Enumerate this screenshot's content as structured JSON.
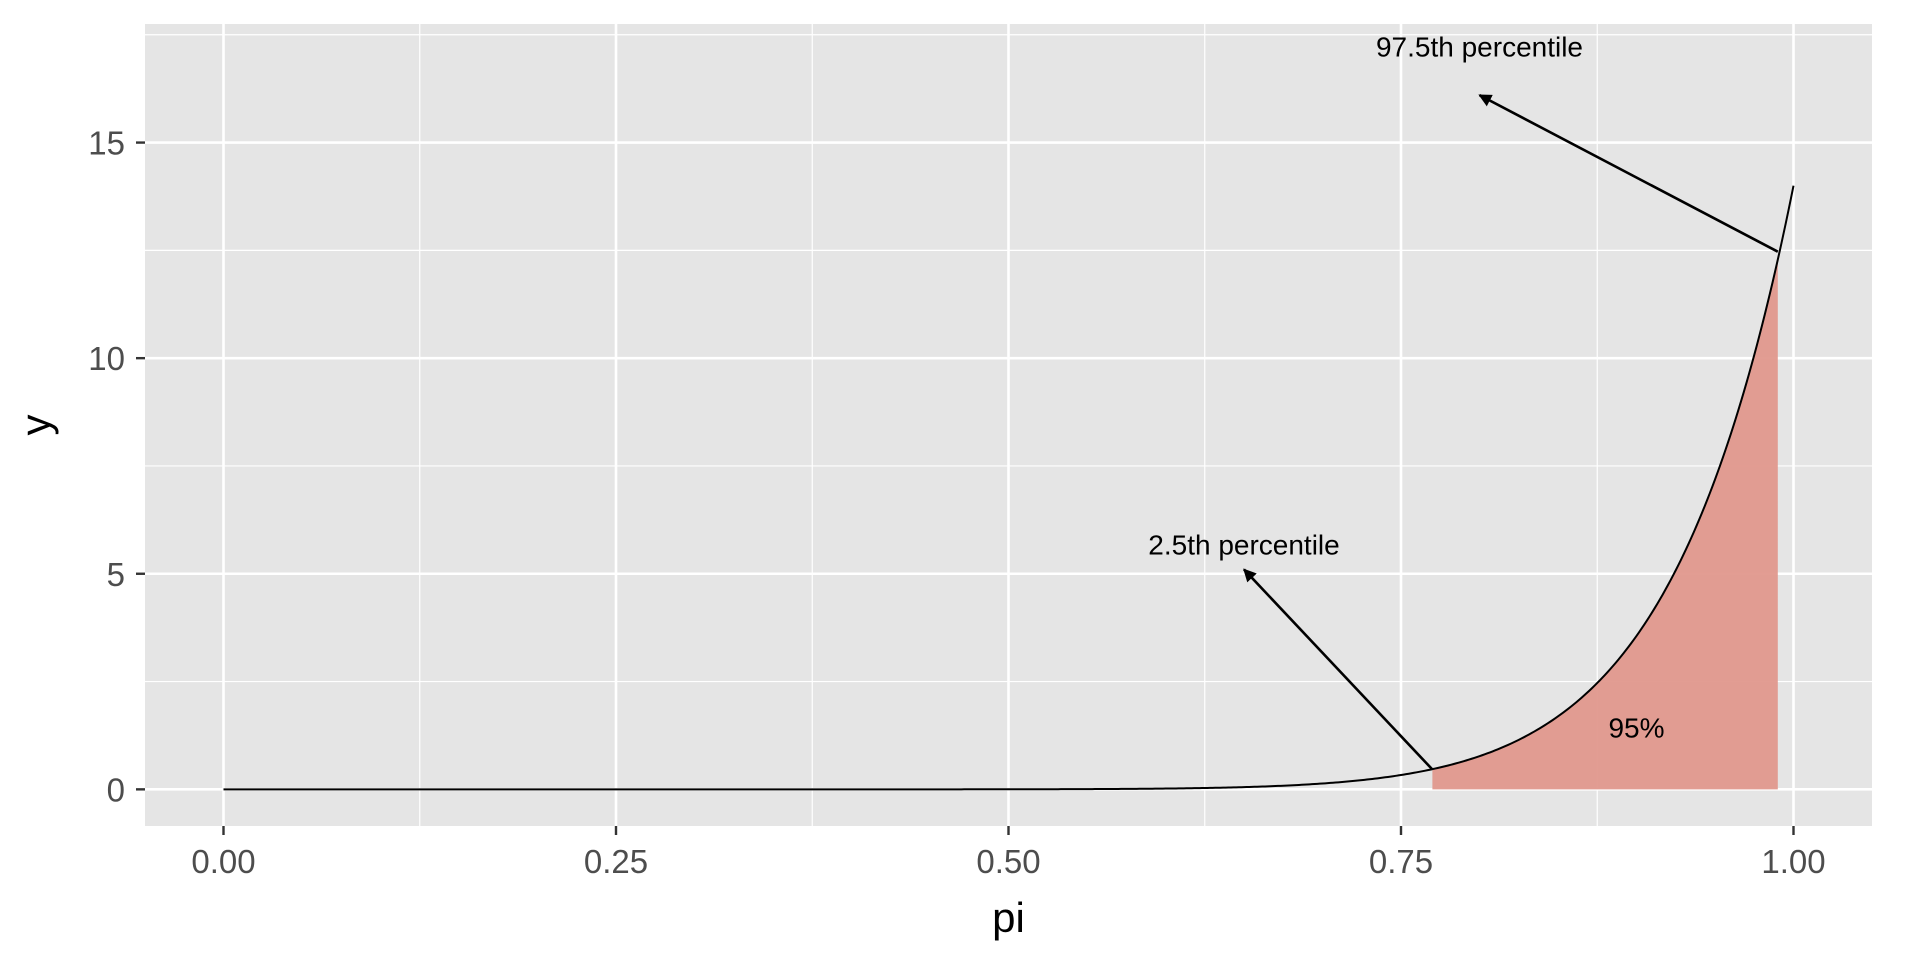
{
  "chart_data": {
    "type": "line",
    "title": "",
    "xlabel": "pi",
    "ylabel": "y",
    "xlim": [
      -0.05,
      1.05
    ],
    "ylim": [
      -0.85,
      17.75
    ],
    "grid": true,
    "x_ticks": [
      {
        "value": 0.0,
        "label": "0.00"
      },
      {
        "value": 0.25,
        "label": "0.25"
      },
      {
        "value": 0.5,
        "label": "0.50"
      },
      {
        "value": 0.75,
        "label": "0.75"
      },
      {
        "value": 1.0,
        "label": "1.00"
      }
    ],
    "y_ticks": [
      {
        "value": 0,
        "label": "0"
      },
      {
        "value": 5,
        "label": "5"
      },
      {
        "value": 10,
        "label": "10"
      },
      {
        "value": 15,
        "label": "15"
      }
    ],
    "x_minor": [
      0.125,
      0.375,
      0.625,
      0.875
    ],
    "y_minor": [
      2.5,
      7.5,
      12.5,
      17.5
    ],
    "series": [
      {
        "curve": "14*pi^13",
        "x": [
          0,
          0.1,
          0.2,
          0.3,
          0.4,
          0.5,
          0.55,
          0.6,
          0.62,
          0.65,
          0.67,
          0.7,
          0.72,
          0.75,
          0.77,
          0.8,
          0.82,
          0.85,
          0.87,
          0.9,
          0.92,
          0.94,
          0.96,
          0.98,
          0.99,
          1.0
        ],
        "y": [
          0,
          0,
          0,
          0,
          0.001,
          0.002,
          0.006,
          0.017,
          0.029,
          0.052,
          0.077,
          0.136,
          0.198,
          0.33,
          0.46,
          0.77,
          1.06,
          1.71,
          2.28,
          3.57,
          4.77,
          6.32,
          8.46,
          10.81,
          12.22,
          14.0
        ]
      }
    ],
    "shaded_region": {
      "x_from": 0.77,
      "x_to": 0.99,
      "fill": "#e0988d",
      "label": "95%",
      "label_x": 0.9,
      "label_y": 1.2
    },
    "annotations": [
      {
        "text": "2.5th percentile",
        "text_x": 0.65,
        "text_y": 5.45,
        "arrow_from_x": 0.77,
        "arrow_from_y": 0.46,
        "arrow_to_x": 0.65,
        "arrow_to_y": 5.1
      },
      {
        "text": "97.5th percentile",
        "text_x": 0.8,
        "text_y": 17.0,
        "arrow_from_x": 0.99,
        "arrow_from_y": 12.47,
        "arrow_to_x": 0.8,
        "arrow_to_y": 16.1
      }
    ],
    "colors": {
      "panel_bg": "#e5e5e5",
      "grid": "#ffffff",
      "line": "#000000",
      "tick_text": "#4d4d4d",
      "tick_mark": "#333333"
    }
  }
}
